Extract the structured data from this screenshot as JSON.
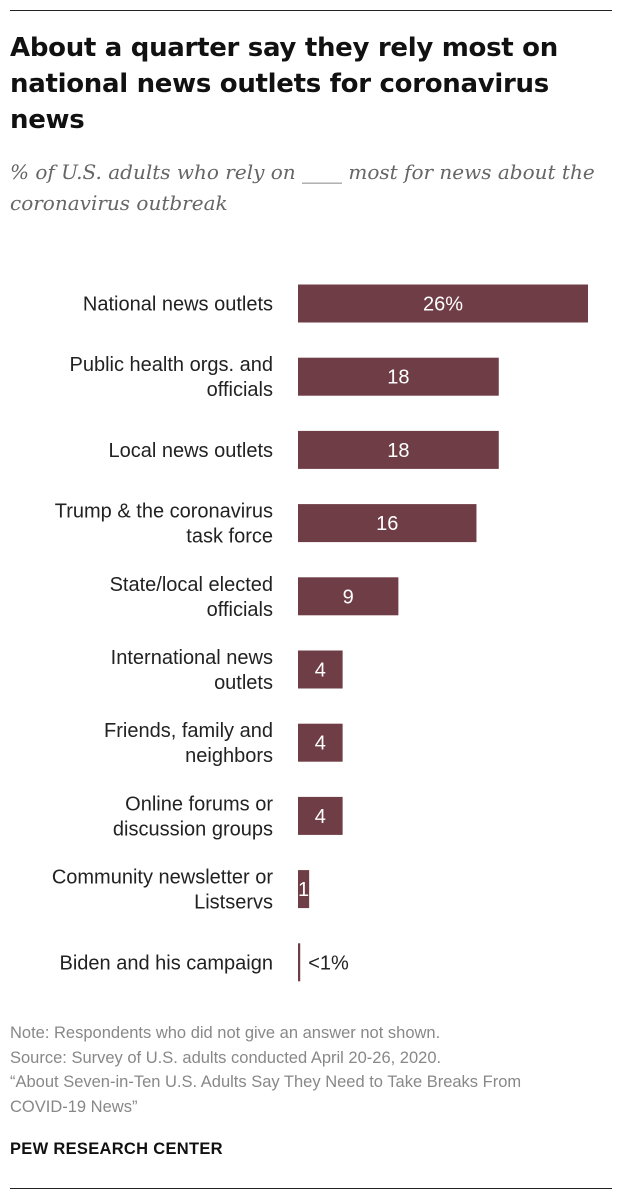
{
  "header": {
    "title": "About a quarter say they rely most on national news outlets for coronavirus news",
    "subtitle": "% of U.S. adults who rely on ____ most for news about the coronavirus outbreak"
  },
  "chart_data": {
    "type": "bar",
    "orientation": "horizontal",
    "categories": [
      "National news outlets",
      "Public health orgs. and officials",
      "Local news outlets",
      "Trump & the coronavirus task force",
      "State/local elected officials",
      "International news outlets",
      "Friends, family and neighbors",
      "Online forums or discussion groups",
      "Community newsletter or Listservs",
      "Biden and his campaign"
    ],
    "series": [
      {
        "values": [
          26,
          18,
          18,
          16,
          9,
          4,
          4,
          4,
          1,
          0.2
        ],
        "labels": [
          "26%",
          "18",
          "18",
          "16",
          "9",
          "4",
          "4",
          "4",
          "1",
          "<1%"
        ]
      }
    ],
    "bar_color": "#6f3d45",
    "label_color_inside": "#ffffff",
    "label_color_outside": "#222222",
    "xlim": [
      0,
      26
    ],
    "grid": false,
    "legend": "none"
  },
  "footer": {
    "note": "Note: Respondents who did not give an answer not shown.",
    "source": "Source: Survey of U.S. adults conducted April 20-26, 2020.",
    "report_line1": "“About Seven-in-Ten U.S. Adults Say They Need to Take Breaks From",
    "report_line2": "COVID-19 News”",
    "org": "PEW RESEARCH CENTER"
  }
}
